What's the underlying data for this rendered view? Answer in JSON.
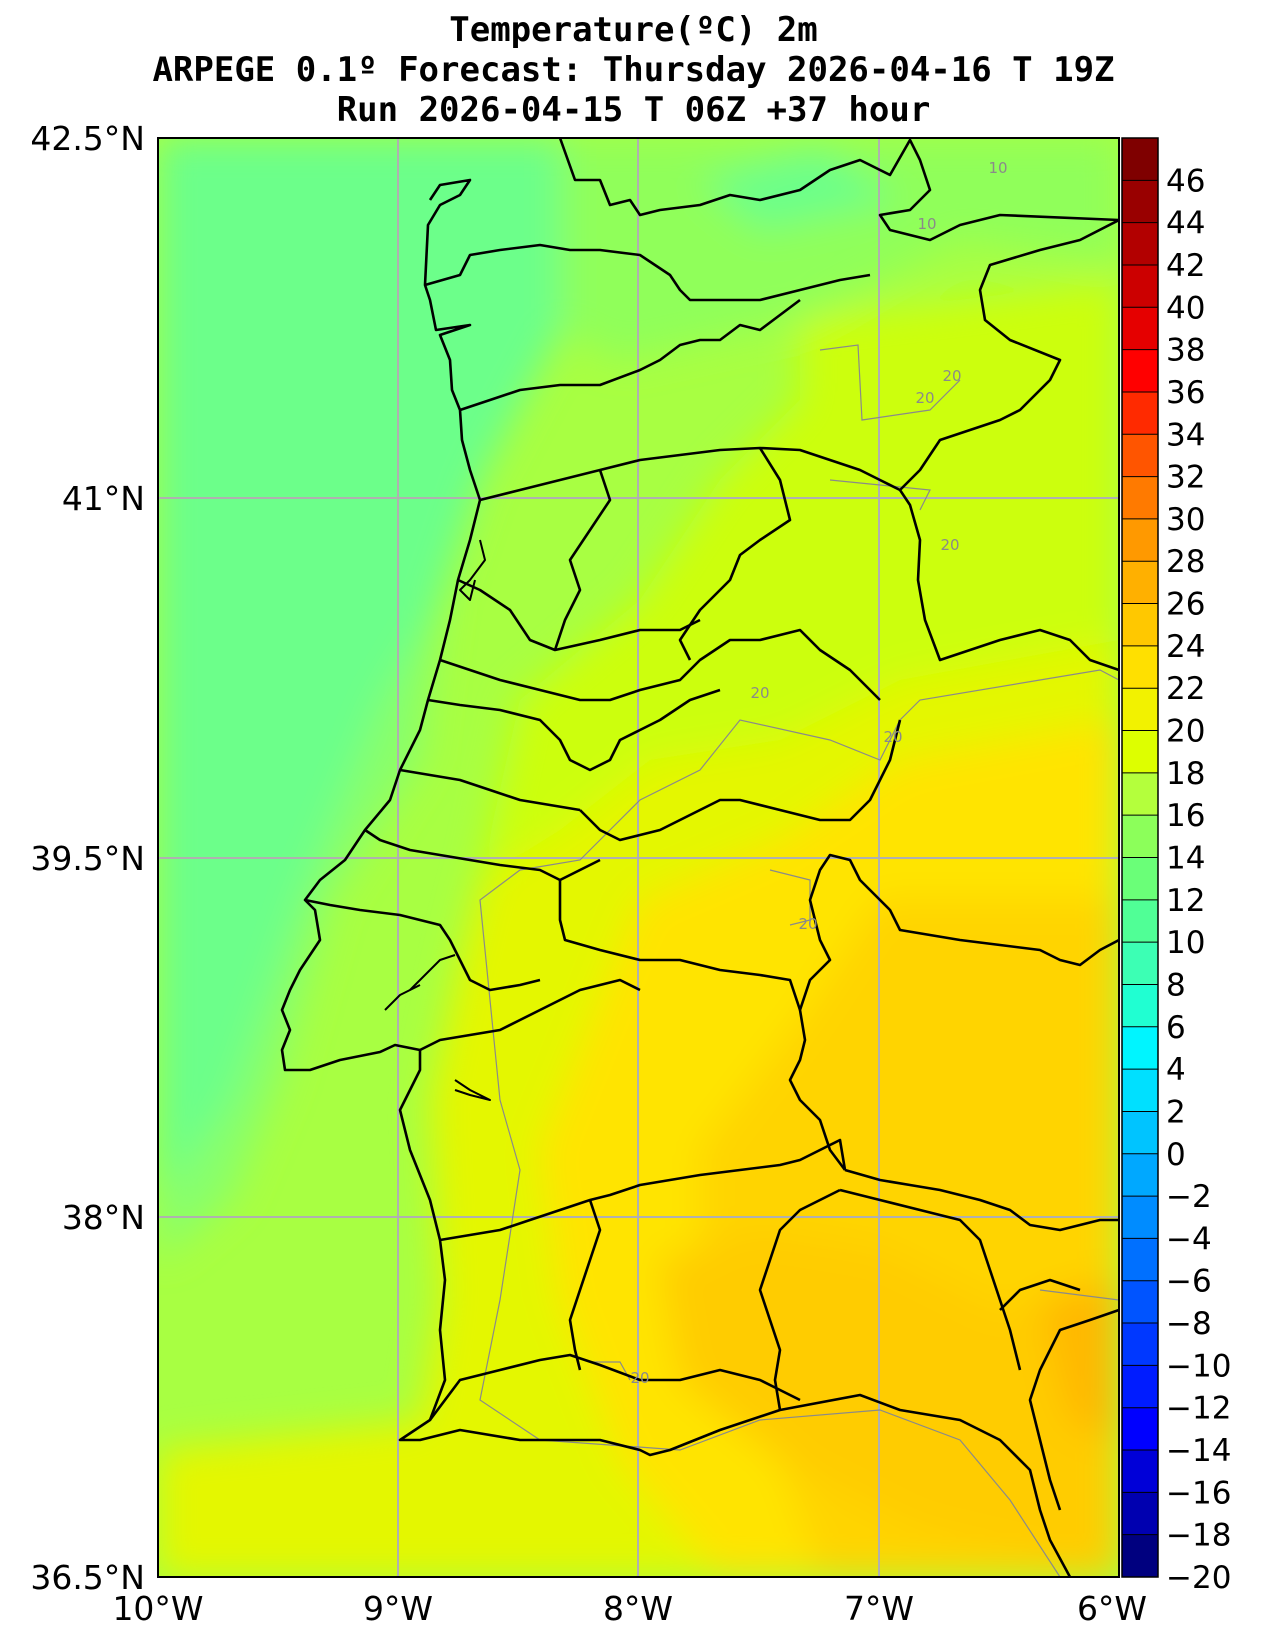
{
  "title": {
    "line1": "Temperature(ºC) 2m",
    "line2": "ARPEGE 0.1º Forecast: Thursday 2026-04-16 T 19Z",
    "line3": "Run 2026-04-15 T 06Z +37 hour"
  },
  "map": {
    "lat_ticks": [
      "42.5°N",
      "41°N",
      "39.5°N",
      "38°N",
      "36.5°N"
    ],
    "lon_ticks": [
      "10°W",
      "9°W",
      "8°W",
      "7°W",
      "6°W"
    ],
    "extent": {
      "lon_min": -10,
      "lon_max": -6,
      "lat_min": 36.5,
      "lat_max": 42.5
    }
  },
  "colorbar": {
    "labels": [
      "46",
      "44",
      "42",
      "40",
      "38",
      "36",
      "34",
      "32",
      "30",
      "28",
      "26",
      "24",
      "22",
      "20",
      "18",
      "16",
      "14",
      "12",
      "10",
      "8",
      "6",
      "4",
      "2",
      "0",
      "−2",
      "−4",
      "−6",
      "−8",
      "−10",
      "−12",
      "−14",
      "−16",
      "−18",
      "−20"
    ],
    "colors": [
      "#7f0000",
      "#990000",
      "#b20000",
      "#cc0000",
      "#e50000",
      "#ff0000",
      "#ff2a00",
      "#ff5500",
      "#ff7a00",
      "#ff9900",
      "#ffb000",
      "#ffc800",
      "#ffe000",
      "#f2f200",
      "#ddff00",
      "#b4ff3c",
      "#8cff5a",
      "#6aff78",
      "#50ff96",
      "#3cffb4",
      "#20ffd2",
      "#00f5ff",
      "#00e0ff",
      "#00c4ff",
      "#00a8ff",
      "#008cff",
      "#0070ff",
      "#0054ff",
      "#0038ff",
      "#001cff",
      "#0000ff",
      "#0000d8",
      "#0000b0",
      "#00007f"
    ]
  },
  "contour_labels": [
    {
      "text": "10"
    },
    {
      "text": "10"
    },
    {
      "text": "20"
    },
    {
      "text": "20"
    },
    {
      "text": "20"
    },
    {
      "text": "20"
    },
    {
      "text": "20"
    },
    {
      "text": "20"
    },
    {
      "text": "20"
    }
  ]
}
